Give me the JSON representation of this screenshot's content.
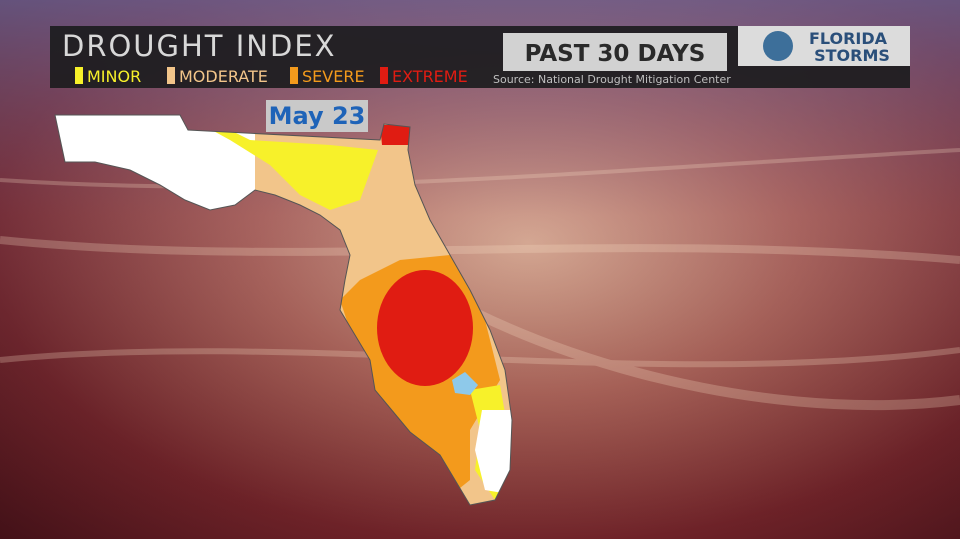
{
  "header": {
    "title": "DROUGHT INDEX",
    "period": "PAST 30 DAYS",
    "source": "Source: National Drought Mitigation Center"
  },
  "legend": [
    {
      "label": "MINOR"
    },
    {
      "label": "MODERATE"
    },
    {
      "label": "SEVERE"
    },
    {
      "label": "EXTREME"
    }
  ],
  "logo": {
    "line1": "FLORIDA",
    "line2": "STORMS"
  },
  "map": {
    "date": "May 23"
  }
}
